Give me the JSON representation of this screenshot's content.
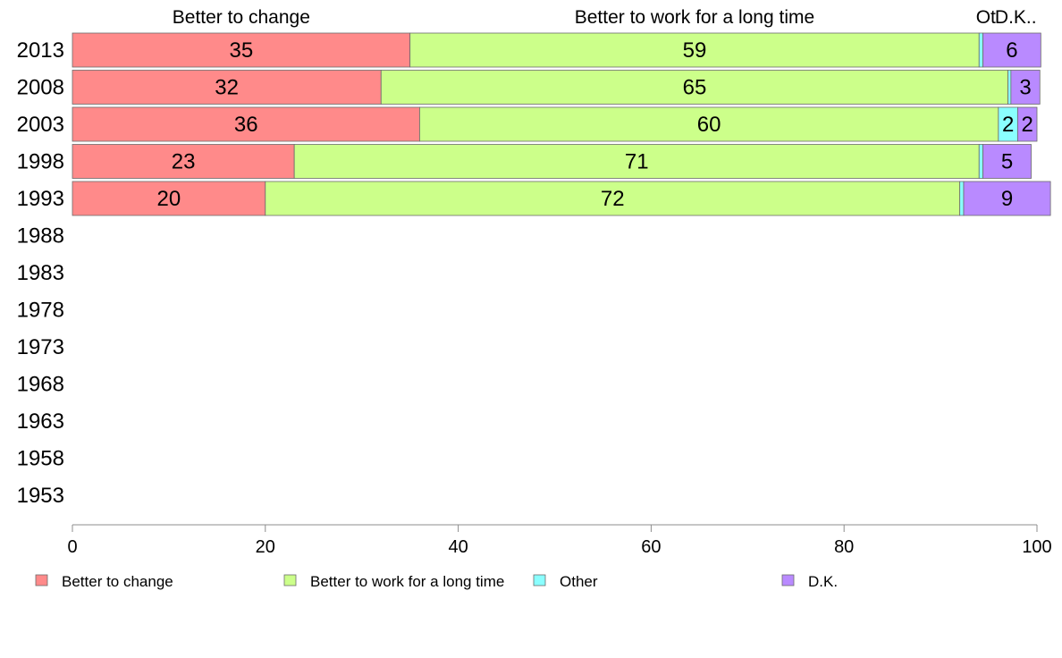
{
  "chart_data": {
    "type": "bar",
    "orientation": "horizontal",
    "stacked": true,
    "categories": [
      "2013",
      "2008",
      "2003",
      "1998",
      "1993",
      "1988",
      "1983",
      "1978",
      "1973",
      "1968",
      "1963",
      "1958",
      "1953"
    ],
    "series": [
      {
        "name": "Better to change",
        "color": "#ff8a8a",
        "values": [
          35,
          32,
          36,
          23,
          20,
          null,
          null,
          null,
          null,
          null,
          null,
          null,
          null
        ]
      },
      {
        "name": "Better to work for a long time",
        "color": "#ccff8a",
        "values": [
          59,
          65,
          60,
          71,
          72,
          null,
          null,
          null,
          null,
          null,
          null,
          null,
          null
        ]
      },
      {
        "name": "Other",
        "color": "#8affff",
        "values": [
          0.4,
          0.3,
          2,
          0.4,
          0.4,
          null,
          null,
          null,
          null,
          null,
          null,
          null,
          null
        ]
      },
      {
        "name": "D.K.",
        "color": "#b98aff",
        "values": [
          6,
          3,
          2,
          5,
          9,
          null,
          null,
          null,
          null,
          null,
          null,
          null,
          null
        ]
      }
    ],
    "data_labels": {
      "2013": [
        "35",
        "59",
        "",
        "6"
      ],
      "2008": [
        "32",
        "65",
        "",
        "3"
      ],
      "2003": [
        "36",
        "60",
        "2",
        "2"
      ],
      "1998": [
        "23",
        "71",
        "",
        "5"
      ],
      "1993": [
        "20",
        "72",
        "",
        "9"
      ]
    },
    "top_labels": [
      {
        "text": "Better to change",
        "value": 17.5
      },
      {
        "text": "Better to work for a long time",
        "value": 64.5
      },
      {
        "text": "Ot",
        "value": 94.7
      },
      {
        "text": "D.K..",
        "value": 97.8
      }
    ],
    "xlim": [
      0,
      100
    ],
    "xticks": [
      0,
      20,
      40,
      60,
      80,
      100
    ],
    "grid": false,
    "legend_placement": "bottom",
    "xlabel": "",
    "ylabel": "",
    "title": ""
  }
}
